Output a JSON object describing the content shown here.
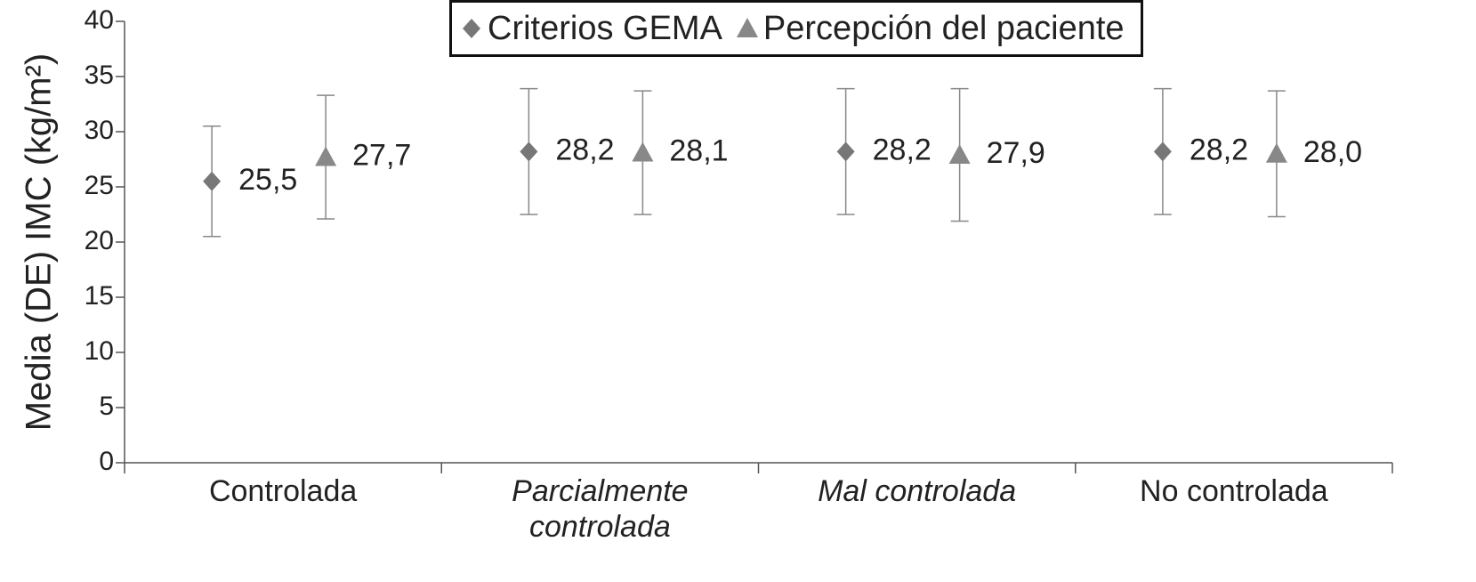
{
  "chart_data": {
    "type": "errorbar",
    "y_label": "Media (DE) IMC (kg/m²)",
    "categories": [
      "Controlada",
      "Parcialmente controlada",
      "Mal controlada",
      "No controlada"
    ],
    "category_styles": [
      "normal",
      "italic",
      "italic",
      "normal"
    ],
    "series": [
      {
        "name": "Criterios GEMA",
        "color": "#777777",
        "marker": "diamond",
        "values": [
          25.5,
          28.2,
          28.2,
          28.2
        ],
        "value_labels": [
          "25,5",
          "28,2",
          "28,2",
          "28,2"
        ],
        "errors": [
          5.0,
          5.7,
          5.7,
          5.7
        ]
      },
      {
        "name": "Percepción del paciente",
        "color": "#888888",
        "marker": "triangle",
        "values": [
          27.7,
          28.1,
          27.9,
          28.0
        ],
        "value_labels": [
          "27,7",
          "28,1",
          "27,9",
          "28,0"
        ],
        "errors": [
          5.6,
          5.6,
          6.0,
          5.7
        ]
      }
    ],
    "ylim": [
      0,
      40
    ],
    "yticks": [
      0,
      5,
      10,
      15,
      20,
      25,
      30,
      35,
      40
    ],
    "legend": "top"
  }
}
